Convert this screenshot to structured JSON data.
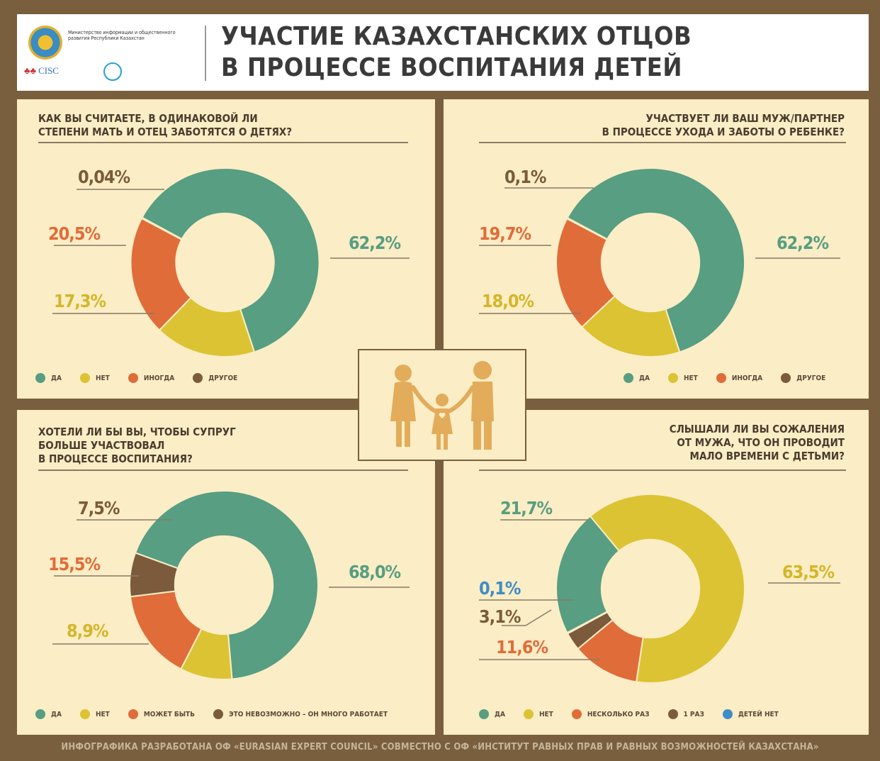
{
  "header": {
    "title_line1": "УЧАСТИЕ КАЗАХСТАНСКИХ ОТЦОВ",
    "title_line2": "В ПРОЦЕССЕ ВОСПИТАНИЯ ДЕТЕЙ",
    "ministry_text": "Министерство информации и общественного развития Республики Казахстан",
    "cisc_label": "CISC"
  },
  "colors": {
    "yes": "#579e82",
    "no": "#dcc333",
    "sometimes": "#e06c3a",
    "other": "#7b5b3c",
    "no_children": "#3f8cc6"
  },
  "chart_data": [
    {
      "type": "pie",
      "title": "КАК ВЫ СЧИТАЕТЕ, В ОДИНАКОВОЙ ЛИ СТЕПЕНИ МАТЬ И ОТЕЦ ЗАБОТЯТСЯ О ДЕТЯХ?",
      "title_lines": [
        "КАК ВЫ СЧИТАЕТЕ, В ОДИНАКОВОЙ ЛИ",
        "СТЕПЕНИ МАТЬ И ОТЕЦ ЗАБОТЯТСЯ О ДЕТЯХ?"
      ],
      "slices": [
        {
          "name": "ДА",
          "value": 62.2,
          "label": "62,2%"
        },
        {
          "name": "НЕТ",
          "value": 17.3,
          "label": "17,3%"
        },
        {
          "name": "ИНОГДА",
          "value": 20.5,
          "label": "20,5%"
        },
        {
          "name": "ДРУГОЕ",
          "value": 0.04,
          "label": "0,04%"
        }
      ]
    },
    {
      "type": "pie",
      "title": "УЧАСТВУЕТ ЛИ ВАШ МУЖ/ПАРТНЕР В ПРОЦЕССЕ УХОДА И ЗАБОТЫ О РЕБЕНКЕ?",
      "title_lines": [
        "УЧАСТВУЕТ ЛИ ВАШ  МУЖ/ПАРТНЕР",
        "В ПРОЦЕССЕ УХОДА И ЗАБОТЫ О РЕБЕНКЕ?"
      ],
      "slices": [
        {
          "name": "ДА",
          "value": 62.2,
          "label": "62,2%"
        },
        {
          "name": "НЕТ",
          "value": 18.0,
          "label": "18,0%"
        },
        {
          "name": "ИНОГДА",
          "value": 19.7,
          "label": "19,7%"
        },
        {
          "name": "ДРУГОЕ",
          "value": 0.1,
          "label": "0,1%"
        }
      ]
    },
    {
      "type": "pie",
      "title": "ХОТЕЛИ ЛИ БЫ ВЫ, ЧТОБЫ СУПРУГ БОЛЬШЕ УЧАСТВОВАЛ В ПРОЦЕССЕ ВОСПИТАНИЯ?",
      "title_lines": [
        "ХОТЕЛИ ЛИ БЫ ВЫ, ЧТОБЫ СУПРУГ",
        "БОЛЬШЕ УЧАСТВОВАЛ",
        "В ПРОЦЕССЕ ВОСПИТАНИЯ?"
      ],
      "slices": [
        {
          "name": "ДА",
          "value": 68.0,
          "label": "68,0%"
        },
        {
          "name": "НЕТ",
          "value": 8.9,
          "label": "8,9%"
        },
        {
          "name": "МОЖЕТ БЫТЬ",
          "value": 15.5,
          "label": "15,5%"
        },
        {
          "name": "ЭТО НЕВОЗМОЖНО – ОН МНОГО РАБОТАЕТ",
          "value": 7.5,
          "label": "7,5%"
        }
      ]
    },
    {
      "type": "pie",
      "title": "СЛЫШАЛИ ЛИ ВЫ СОЖАЛЕНИЯ ОТ МУЖА, ЧТО ОН ПРОВОДИТ МАЛО ВРЕМЕНИ С ДЕТЬМИ?",
      "title_lines": [
        "СЛЫШАЛИ ЛИ ВЫ СОЖАЛЕНИЯ",
        "ОТ МУЖА, ЧТО ОН ПРОВОДИТ",
        "МАЛО ВРЕМЕНИ С ДЕТЬМИ?"
      ],
      "slices": [
        {
          "name": "ДА",
          "value": 21.7,
          "label": "21,7%"
        },
        {
          "name": "НЕТ",
          "value": 63.5,
          "label": "63,5%"
        },
        {
          "name": "НЕСКОЛЬКО РАЗ",
          "value": 11.6,
          "label": "11,6%"
        },
        {
          "name": "1 РАЗ",
          "value": 3.1,
          "label": "3,1%"
        },
        {
          "name": "ДЕТЕЙ НЕТ",
          "value": 0.1,
          "label": "0,1%"
        }
      ]
    }
  ],
  "footer": "ИНФОГРАФИКА РАЗРАБОТАНА ОФ «EURASIAN EXPERT COUNCIL» СОВМЕСТНО С ОФ «ИНСТИТУТ РАВНЫХ ПРАВ И РАВНЫХ ВОЗМОЖНОСТЕЙ КАЗАХСТАНА»"
}
